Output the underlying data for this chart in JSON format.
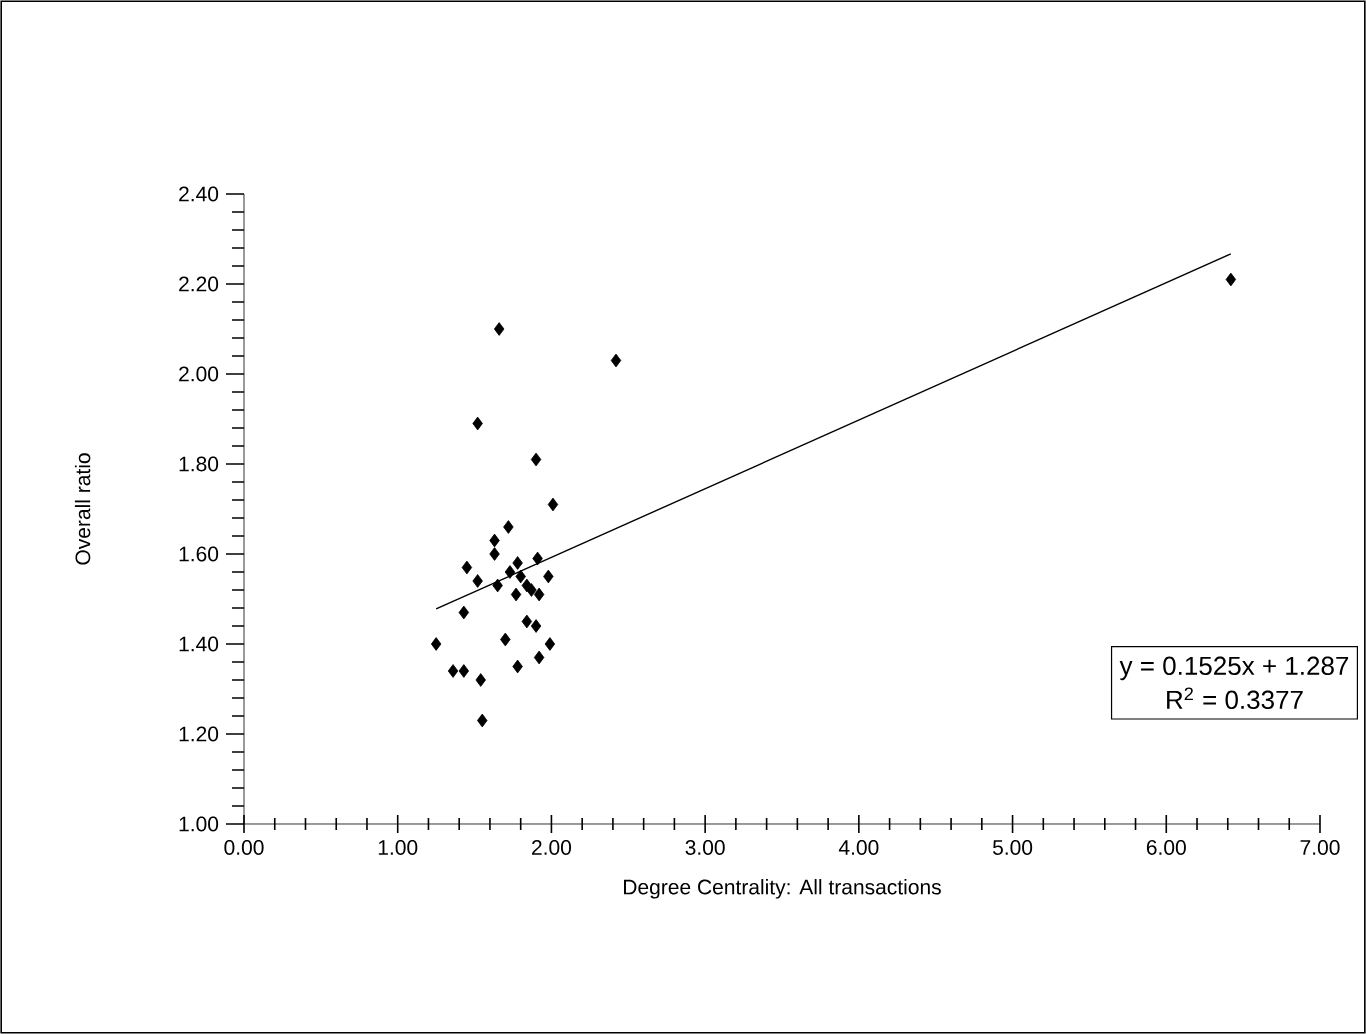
{
  "chart_data": {
    "type": "scatter",
    "xlabel": "Degree Centrality: All transactions",
    "ylabel": "Overall ratio",
    "annotations": [
      "y = 0.1525x + 1.287",
      "R$^{2}$ = 0.3377"
    ],
    "xlim": [
      0,
      7
    ],
    "ylim": [
      1,
      2.4
    ],
    "xticks": [
      {
        "value": 0,
        "label": "0.00"
      },
      {
        "value": 1,
        "label": "1.00"
      },
      {
        "value": 2,
        "label": "2.00"
      },
      {
        "value": 3,
        "label": "3.00"
      },
      {
        "value": 4,
        "label": "4.00"
      },
      {
        "value": 5,
        "label": "5.00"
      },
      {
        "value": 6,
        "label": "6.00"
      },
      {
        "value": 7,
        "label": "7.00"
      }
    ],
    "yticks": [
      {
        "value": 1,
        "label": "1.00"
      },
      {
        "value": 1.2,
        "label": "1.20"
      },
      {
        "value": 1.4,
        "label": "1.40"
      },
      {
        "value": 1.6,
        "label": "1.60"
      },
      {
        "value": 1.8,
        "label": "1.80"
      },
      {
        "value": 2,
        "label": "2.00"
      },
      {
        "value": 2.2,
        "label": "2.20"
      },
      {
        "value": 2.4,
        "label": "2.40"
      }
    ],
    "grid": false,
    "marker": "diamond",
    "series": [
      {
        "color": "#000000",
        "x": [
          1.66,
          2.42,
          1.52,
          1.9,
          2.01,
          1.72,
          1.63,
          1.63,
          1.45,
          1.52,
          1.78,
          1.91,
          1.98,
          1.73,
          1.65,
          1.8,
          1.84,
          1.77,
          1.92,
          1.87,
          1.43,
          1.84,
          1.9,
          1.7,
          1.99,
          1.25,
          1.92,
          1.78,
          1.36,
          1.43,
          1.54,
          1.55,
          6.42
        ],
        "values": [
          2.1,
          2.03,
          1.89,
          1.81,
          1.71,
          1.66,
          1.63,
          1.6,
          1.57,
          1.54,
          1.58,
          1.59,
          1.55,
          1.56,
          1.53,
          1.55,
          1.53,
          1.51,
          1.51,
          1.52,
          1.47,
          1.45,
          1.44,
          1.41,
          1.4,
          1.4,
          1.37,
          1.35,
          1.34,
          1.34,
          1.32,
          1.23,
          2.21
        ]
      },
      {
        "type": "line",
        "color": "#000000",
        "marker": "none",
        "x": [
          1.25,
          6.42
        ],
        "values": [
          1.478,
          2.267
        ]
      }
    ]
  }
}
